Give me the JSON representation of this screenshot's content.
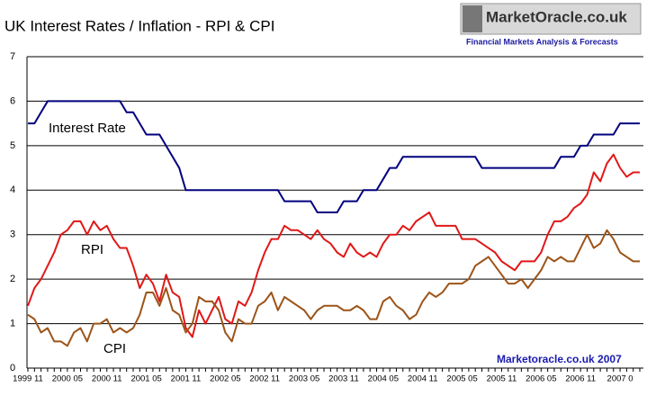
{
  "chart_data": {
    "type": "line",
    "title": "UK Interest Rates / Inflation - RPI & CPI",
    "logo_title": "MarketOracle.co.uk",
    "logo_subtitle": "Financial Markets Analysis & Forecasts",
    "annotation": "Marketoracle.co.uk 2007",
    "categories": [
      "1999 11",
      null,
      null,
      null,
      null,
      null,
      "2000 05",
      null,
      null,
      null,
      null,
      null,
      "2000 11",
      null,
      null,
      null,
      null,
      null,
      "2001 05",
      null,
      null,
      null,
      null,
      null,
      "2001 11",
      null,
      null,
      null,
      null,
      null,
      "2002 05",
      null,
      null,
      null,
      null,
      null,
      "2002 11",
      null,
      null,
      null,
      null,
      null,
      "2003 05",
      null,
      null,
      null,
      null,
      null,
      "2003 11",
      null,
      null,
      null,
      null,
      null,
      "2004 05",
      null,
      null,
      null,
      null,
      null,
      "2004 11",
      null,
      null,
      null,
      null,
      null,
      "2005 05",
      null,
      null,
      null,
      null,
      null,
      "2005 11",
      null,
      null,
      null,
      null,
      null,
      "2006 05",
      null,
      null,
      null,
      null,
      null,
      "2006 11",
      null,
      null,
      null,
      null,
      null,
      "2007 0",
      null,
      null,
      null
    ],
    "series": [
      {
        "name": "Interest Rate",
        "color": "#00007f",
        "values": [
          5.5,
          5.5,
          5.75,
          6,
          6,
          6,
          6,
          6,
          6,
          6,
          6,
          6,
          6,
          6,
          6,
          5.75,
          5.75,
          5.5,
          5.25,
          5.25,
          5.25,
          5,
          4.75,
          4.5,
          4,
          4,
          4,
          4,
          4,
          4,
          4,
          4,
          4,
          4,
          4,
          4,
          4,
          4,
          4,
          3.75,
          3.75,
          3.75,
          3.75,
          3.75,
          3.5,
          3.5,
          3.5,
          3.5,
          3.75,
          3.75,
          3.75,
          4,
          4,
          4,
          4.25,
          4.5,
          4.5,
          4.75,
          4.75,
          4.75,
          4.75,
          4.75,
          4.75,
          4.75,
          4.75,
          4.75,
          4.75,
          4.75,
          4.75,
          4.5,
          4.5,
          4.5,
          4.5,
          4.5,
          4.5,
          4.5,
          4.5,
          4.5,
          4.5,
          4.5,
          4.5,
          4.75,
          4.75,
          4.75,
          5,
          5,
          5.25,
          5.25,
          5.25,
          5.25,
          5.5,
          5.5,
          5.5,
          5.5
        ]
      },
      {
        "name": "RPI",
        "color": "#e01818",
        "values": [
          1.4,
          1.8,
          2.0,
          2.3,
          2.6,
          3.0,
          3.1,
          3.3,
          3.3,
          3.0,
          3.3,
          3.1,
          3.2,
          2.9,
          2.7,
          2.7,
          2.3,
          1.8,
          2.1,
          1.9,
          1.5,
          2.1,
          1.7,
          1.6,
          0.9,
          0.7,
          1.3,
          1.0,
          1.3,
          1.6,
          1.1,
          1.0,
          1.5,
          1.4,
          1.7,
          2.2,
          2.6,
          2.9,
          2.9,
          3.2,
          3.1,
          3.1,
          3.0,
          2.9,
          3.1,
          2.9,
          2.8,
          2.6,
          2.5,
          2.8,
          2.6,
          2.5,
          2.6,
          2.5,
          2.8,
          3.0,
          3.0,
          3.2,
          3.1,
          3.3,
          3.4,
          3.5,
          3.2,
          3.2,
          3.2,
          3.2,
          2.9,
          2.9,
          2.9,
          2.8,
          2.7,
          2.6,
          2.4,
          2.3,
          2.2,
          2.4,
          2.4,
          2.4,
          2.6,
          3.0,
          3.3,
          3.3,
          3.4,
          3.6,
          3.7,
          3.9,
          4.4,
          4.2,
          4.6,
          4.8,
          4.5,
          4.3,
          4.4,
          4.4
        ]
      },
      {
        "name": "CPI",
        "color": "#9c5418",
        "values": [
          1.2,
          1.1,
          0.8,
          0.9,
          0.6,
          0.6,
          0.5,
          0.8,
          0.9,
          0.6,
          1.0,
          1.0,
          1.1,
          0.8,
          0.9,
          0.8,
          0.9,
          1.2,
          1.7,
          1.7,
          1.4,
          1.8,
          1.3,
          1.2,
          0.8,
          1.0,
          1.6,
          1.5,
          1.5,
          1.3,
          0.8,
          0.6,
          1.1,
          1.0,
          1.0,
          1.4,
          1.5,
          1.7,
          1.3,
          1.6,
          1.5,
          1.4,
          1.3,
          1.1,
          1.3,
          1.4,
          1.4,
          1.4,
          1.3,
          1.3,
          1.4,
          1.3,
          1.1,
          1.1,
          1.5,
          1.6,
          1.4,
          1.3,
          1.1,
          1.2,
          1.5,
          1.7,
          1.6,
          1.7,
          1.9,
          1.9,
          1.9,
          2.0,
          2.3,
          2.4,
          2.5,
          2.3,
          2.1,
          1.9,
          1.9,
          2.0,
          1.8,
          2.0,
          2.2,
          2.5,
          2.4,
          2.5,
          2.4,
          2.4,
          2.7,
          3.0,
          2.7,
          2.8,
          3.1,
          2.9,
          2.6,
          2.5,
          2.4,
          2.4
        ]
      }
    ],
    "ylim": [
      0,
      7
    ],
    "yticks": [
      0,
      1,
      2,
      3,
      4,
      5,
      6,
      7
    ],
    "grid": true
  }
}
